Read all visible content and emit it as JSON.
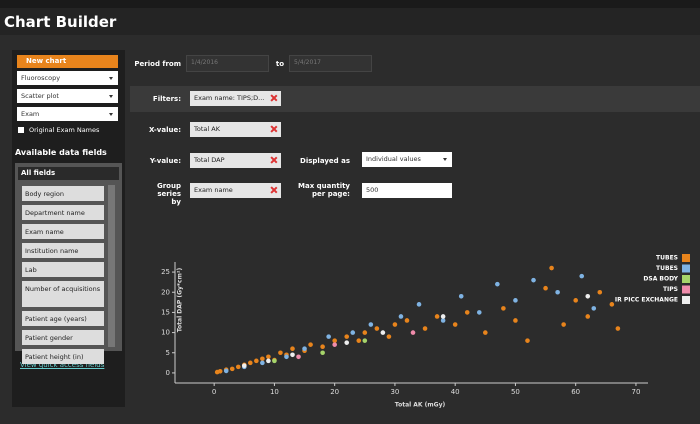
{
  "header": {
    "title": "Chart Builder"
  },
  "sidebar": {
    "new_chart": "New chart",
    "dropdowns": [
      "Fluoroscopy",
      "Scatter plot",
      "Exam"
    ],
    "checkbox": "Original Exam Names",
    "section_title": "Available data fields",
    "list_header": "All fields",
    "fields": [
      "Body region",
      "Department name",
      "Exam name",
      "Institution name",
      "Lab",
      "Number of acquisitions",
      "Patient age (years)",
      "Patient gender",
      "Patient height (in)"
    ],
    "link": "View quick access fields"
  },
  "form": {
    "period_from_label": "Period from",
    "period_from": "1/4/2016",
    "to_label": "to",
    "period_to": "5/4/2017",
    "filters_label": "Filters:",
    "filter": "Exam name: TIPS;D...",
    "x_label": "X-value:",
    "x_value": "Total AK",
    "y_label": "Y-value:",
    "y_value": "Total DAP",
    "displayed_label": "Displayed as",
    "displayed_value": "Individual values",
    "group_label": "Group series by",
    "group_value": "Exam name",
    "max_label": "Max quantity per page:",
    "max_value": "500"
  },
  "chart_data": {
    "type": "scatter",
    "x_label": "Total AK (mGy)",
    "y_label": "Total DAP (Gy*cm²)",
    "xlim": [
      -6.5,
      72
    ],
    "ylim": [
      -2.5,
      27.5
    ],
    "xticks": [
      0,
      10,
      20,
      30,
      40,
      50,
      60,
      70
    ],
    "yticks": [
      0,
      5,
      10,
      15,
      20,
      25
    ],
    "series": [
      {
        "name": "TUBES",
        "color": "#e8841c",
        "x": [
          0.5,
          1,
          2,
          3,
          4,
          5,
          6,
          7,
          8,
          9,
          10,
          11,
          12,
          13,
          15,
          16,
          18,
          20,
          22,
          24,
          25,
          27,
          29,
          30,
          32,
          35,
          37,
          40,
          42,
          45,
          48,
          50,
          52,
          55,
          56,
          58,
          60,
          62,
          64,
          66,
          67
        ],
        "values": [
          0.2,
          0.4,
          0.8,
          1,
          1.5,
          2,
          2.5,
          3,
          3.5,
          4,
          3.2,
          5,
          4.5,
          6,
          5.5,
          7,
          6.5,
          8,
          9,
          8,
          10,
          11,
          9,
          12,
          13,
          11,
          14,
          12,
          15,
          10,
          16,
          13,
          8,
          21,
          26,
          12,
          18,
          14,
          20,
          17,
          11
        ]
      },
      {
        "name": "TUBES",
        "color": "#7fb3e3",
        "x": [
          2,
          5,
          8,
          12,
          15,
          19,
          23,
          26,
          31,
          34,
          38,
          41,
          44,
          47,
          50,
          53,
          57,
          61,
          63
        ],
        "values": [
          0.5,
          1.5,
          2.5,
          4,
          6,
          9,
          10,
          12,
          14,
          17,
          13,
          19,
          15,
          22,
          18,
          23,
          20,
          24,
          16
        ]
      },
      {
        "name": "DSA BODY",
        "color": "#a6d46a",
        "x": [
          10,
          18,
          25
        ],
        "values": [
          3,
          5,
          8
        ]
      },
      {
        "name": "TIPS",
        "color": "#f08cab",
        "x": [
          14,
          20,
          33
        ],
        "values": [
          4,
          7,
          10
        ]
      },
      {
        "name": "IR PICC EXCHANGE",
        "color": "#eeeeee",
        "x": [
          5,
          9,
          13,
          22,
          28,
          38,
          62
        ],
        "values": [
          1.8,
          3,
          4.5,
          7.5,
          10,
          14,
          19
        ]
      }
    ]
  }
}
